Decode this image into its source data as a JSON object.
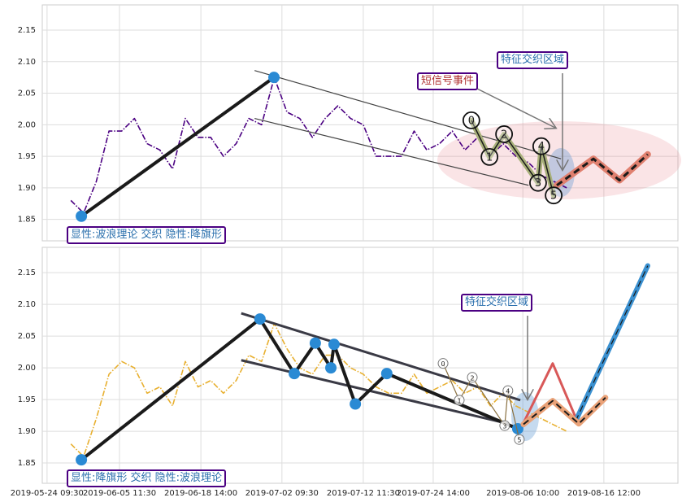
{
  "chart_data": [
    {
      "type": "line",
      "xlim": [
        0,
        200
      ],
      "ylim": [
        1.816,
        2.19
      ],
      "yticks": [
        1.85,
        {
          "value": 1.9,
          "label": "1.90"
        },
        1.95,
        {
          "value": 2.0,
          "label": "2.00"
        },
        2.05,
        {
          "value": 2.1,
          "label": "2.10"
        },
        2.15
      ],
      "grid": true,
      "series": [
        {
          "color": "#4b0082",
          "style": "dashdot",
          "width": 1.6,
          "x": [
            9,
            13,
            17,
            21,
            25,
            29,
            33,
            37,
            41,
            45,
            49,
            53,
            57,
            61,
            65,
            69,
            73,
            77,
            81,
            85,
            89,
            93,
            97,
            101,
            105,
            109,
            113,
            117,
            121,
            125,
            129,
            133,
            137,
            141,
            145,
            149,
            153,
            157,
            161,
            165
          ],
          "values": [
            1.88,
            1.86,
            1.91,
            1.99,
            1.99,
            2.01,
            1.97,
            1.96,
            1.93,
            2.01,
            1.98,
            1.98,
            1.95,
            1.97,
            2.01,
            2.0,
            2.075,
            2.02,
            2.01,
            1.98,
            2.01,
            2.03,
            2.01,
            2.0,
            1.95,
            1.95,
            1.95,
            1.99,
            1.96,
            1.97,
            1.99,
            1.96,
            1.98,
            1.95,
            1.97,
            1.95,
            1.94,
            1.92,
            1.91,
            1.9
          ]
        },
        {
          "color": "#444444",
          "style": "solid",
          "width": 1.2,
          "x": [
            66.8,
            163.2
          ],
          "values": [
            2.086,
            1.946
          ]
        },
        {
          "color": "#444444",
          "style": "solid",
          "width": 1.2,
          "x": [
            66.8,
            153
          ],
          "values": [
            2.01,
            1.904
          ]
        },
        {
          "color": "#1a1a1a",
          "style": "solid",
          "width": 4,
          "markers": "#2a8ad4",
          "x": [
            12.3,
            72.9
          ],
          "values": [
            1.855,
            2.075
          ]
        },
        {
          "color": "#1a1a1a",
          "style": "solid",
          "width": 1.5,
          "outline": "#a8b07a",
          "x": [
            135,
            140.7,
            145.3,
            156,
            157,
            160.9
          ],
          "values": [
            2.007,
            1.949,
            1.985,
            1.908,
            1.966,
            1.888
          ]
        },
        {
          "color": "#1a1a1a",
          "style": "dashed",
          "width": 3,
          "outline": "#e0806f",
          "x": [
            161.9,
            173.4,
            181.6,
            190.5
          ],
          "values": [
            1.904,
            1.946,
            1.912,
            1.953
          ]
        }
      ],
      "waves": {
        "labels": [
          "0",
          "1",
          "2",
          "3",
          "4",
          "5"
        ],
        "x": [
          135,
          140.7,
          145.3,
          156,
          157,
          160.9
        ],
        "values": [
          2.007,
          1.949,
          1.985,
          1.908,
          1.966,
          1.888
        ]
      },
      "annotations": [
        "短信号事件",
        "特征交织区域",
        "显性:波浪理论 交织 隐性:降旗形"
      ]
    },
    {
      "type": "line",
      "xlim": [
        0,
        200
      ],
      "ylim": [
        1.818,
        2.19
      ],
      "yticks": [
        1.85,
        {
          "value": 1.9,
          "label": "1.90"
        },
        1.95,
        {
          "value": 2.0,
          "label": "2.00"
        },
        2.05,
        {
          "value": 2.1,
          "label": "2.10"
        },
        2.15
      ],
      "xticks": [
        {
          "value": 1.5,
          "label": "2019-05-24 09:30"
        },
        {
          "value": 24.3,
          "label": "2019-06-05 11:30"
        },
        {
          "value": 49.9,
          "label": "2019-06-18 14:00"
        },
        {
          "value": 75.4,
          "label": "2019-07-02 09:30"
        },
        {
          "value": 101,
          "label": "2019-07-12 11:30"
        },
        {
          "value": 123,
          "label": "2019-07-24 14:00"
        },
        {
          "value": 151.2,
          "label": "2019-08-06 10:00"
        },
        {
          "value": 176.7,
          "label": "2019-08-16 12:00"
        }
      ],
      "grid": true,
      "series": [
        {
          "color": "#e8b030",
          "style": "dashdot",
          "width": 1.6,
          "x": [
            9,
            13,
            17,
            21,
            25,
            29,
            33,
            37,
            41,
            45,
            49,
            53,
            57,
            61,
            65,
            69,
            73,
            77,
            81,
            85,
            89,
            93,
            97,
            101,
            105,
            109,
            113,
            117,
            121,
            125,
            129,
            133,
            137,
            141,
            145,
            149,
            153,
            157,
            161,
            165
          ],
          "values": [
            1.88,
            1.86,
            1.92,
            1.99,
            2.01,
            2.0,
            1.96,
            1.97,
            1.94,
            2.01,
            1.97,
            1.98,
            1.96,
            1.98,
            2.02,
            2.01,
            2.07,
            2.03,
            2.0,
            1.99,
            2.02,
            2.02,
            2.0,
            1.99,
            1.97,
            1.96,
            1.96,
            1.99,
            1.96,
            1.97,
            1.98,
            1.96,
            1.97,
            1.94,
            1.96,
            1.94,
            1.93,
            1.92,
            1.91,
            1.9
          ]
        },
        {
          "color": "#3a3a45",
          "style": "solid",
          "width": 3,
          "x": [
            62.6,
            150.4
          ],
          "values": [
            2.086,
            1.949
          ]
        },
        {
          "color": "#3a3a45",
          "style": "solid",
          "width": 3,
          "x": [
            62.6,
            146.5
          ],
          "values": [
            2.012,
            1.912
          ]
        },
        {
          "color": "#1a1a1a",
          "style": "solid",
          "width": 4,
          "markers": "#2a8ad4",
          "x": [
            12.3,
            68.5,
            79.3,
            85.9,
            90.8,
            91.8,
            98.5,
            108.4,
            149.6
          ],
          "values": [
            1.855,
            2.077,
            1.991,
            2.039,
            2.0,
            2.037,
            1.943,
            1.991,
            1.904
          ]
        },
        {
          "color": "#8a7040",
          "style": "solid",
          "width": 1.2,
          "x": [
            126.1,
            131.2,
            135.3,
            145.5,
            146.5,
            150.1
          ],
          "values": [
            2.007,
            1.949,
            1.985,
            1.909,
            1.964,
            1.887
          ]
        },
        {
          "color": "#d85858",
          "style": "solid",
          "width": 3,
          "x": [
            151.4,
            160.6,
            168.3
          ],
          "values": [
            1.913,
            2.007,
            1.916
          ]
        },
        {
          "color": "#1a1a1a",
          "style": "dashed",
          "width": 1.2,
          "outline": "#3a90d0",
          "x": [
            167.8,
            190.5
          ],
          "values": [
            1.916,
            2.161
          ]
        },
        {
          "color": "#1a1a1a",
          "style": "dashed",
          "width": 2,
          "outline": "#eaa278",
          "x": [
            151.4,
            160.6,
            168.8,
            177.2
          ],
          "values": [
            1.911,
            1.948,
            1.912,
            1.953
          ]
        }
      ],
      "waves": {
        "labels": [
          "0",
          "1",
          "2",
          "3",
          "4",
          "5"
        ],
        "x": [
          126.1,
          131.2,
          135.3,
          145.5,
          146.5,
          150.1
        ],
        "values": [
          2.007,
          1.949,
          1.985,
          1.909,
          1.964,
          1.887
        ]
      },
      "annotations": [
        "特征交织区域",
        "显性:降旗形 交织 隐性:波浪理论"
      ]
    }
  ]
}
